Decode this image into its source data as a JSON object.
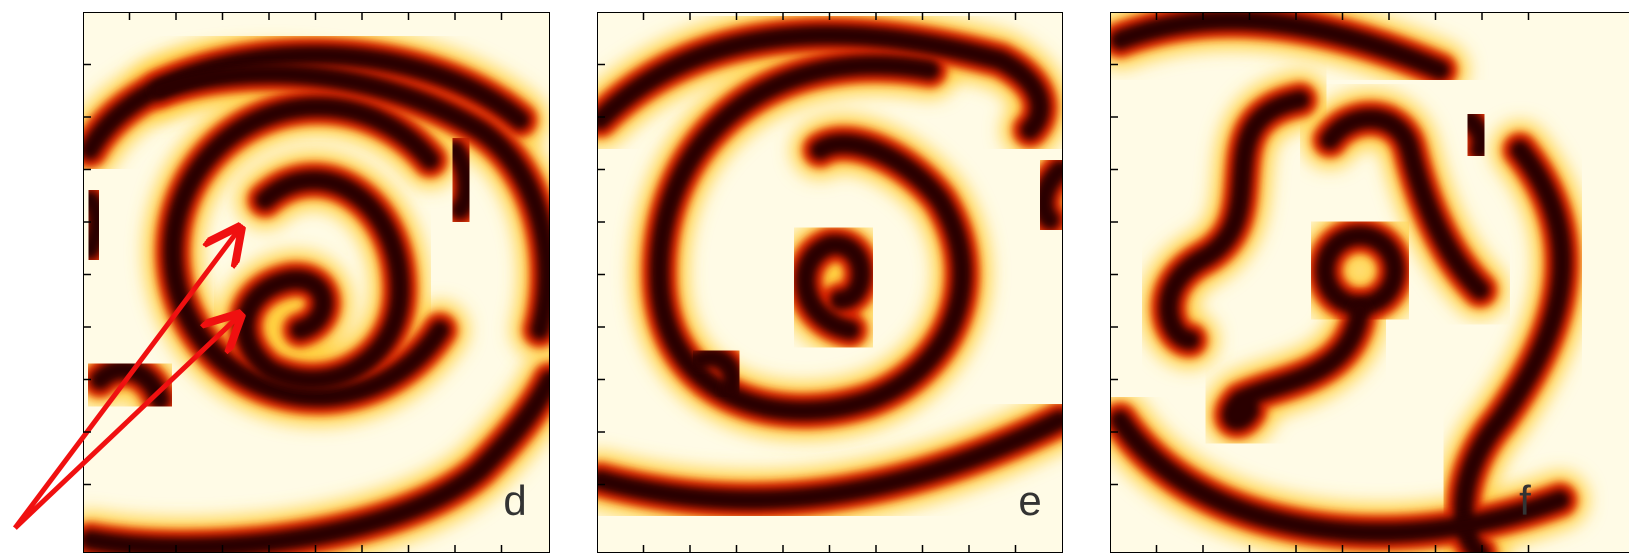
{
  "panels": [
    {
      "label": "d"
    },
    {
      "label": "e"
    },
    {
      "label": "f"
    }
  ]
}
